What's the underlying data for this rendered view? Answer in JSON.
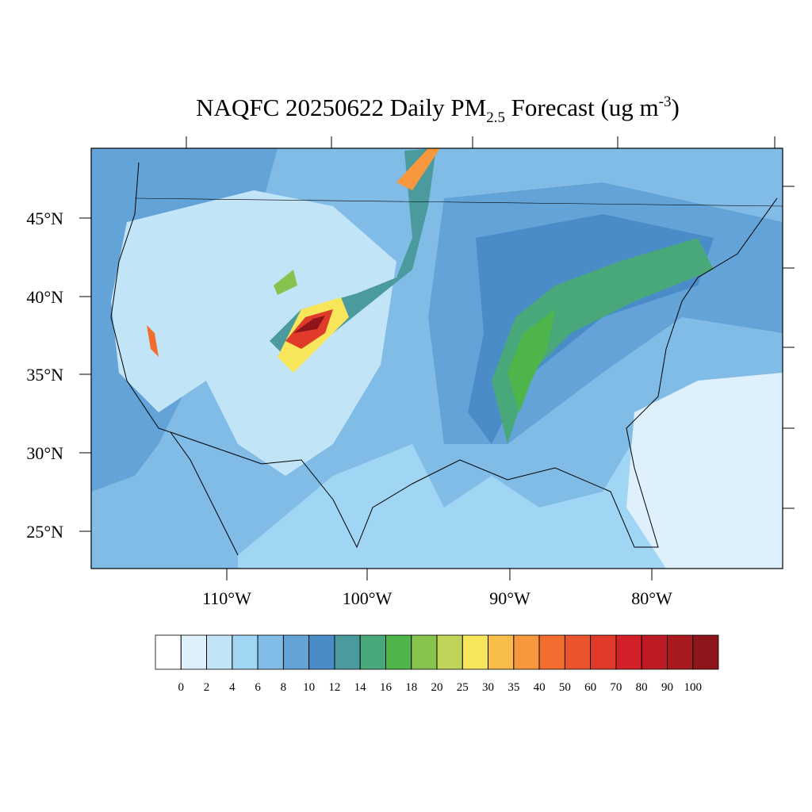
{
  "title": {
    "main": "NAQFC 20250622 Daily PM",
    "sub": "2.5",
    "rest": " Forecast (ug m",
    "sup": "-3",
    "end": ")"
  },
  "map": {
    "lat_labels": [
      "45°N",
      "40°N",
      "35°N",
      "30°N",
      "25°N"
    ],
    "lon_labels": [
      "110°W",
      "100°W",
      "90°W",
      "80°W"
    ]
  },
  "colorbar": {
    "levels": [
      0,
      2,
      4,
      6,
      8,
      10,
      12,
      14,
      16,
      18,
      20,
      25,
      30,
      35,
      40,
      50,
      60,
      70,
      80,
      90,
      100
    ],
    "colors": [
      "#ffffff",
      "#ddf0fb",
      "#c2e4f7",
      "#a0d5f3",
      "#80bce6",
      "#64a3d8",
      "#4a8cc8",
      "#4a9a9e",
      "#48a87a",
      "#4db54a",
      "#86c24e",
      "#c1d45a",
      "#f7e65a",
      "#f9bd4a",
      "#f7983e",
      "#f26d2e",
      "#e9542e",
      "#df3a2a",
      "#d42028",
      "#bd1a24",
      "#a81a1e",
      "#8e161a"
    ]
  }
}
